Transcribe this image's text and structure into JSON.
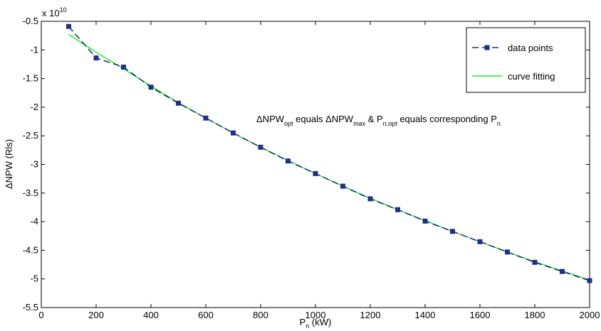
{
  "chart_data": {
    "type": "line",
    "xlabel_main": "P",
    "xlabel_sub": "n",
    "xlabel_unit": " (kW)",
    "ylabel": "ΔNPW (Rls)",
    "y_multiplier_prefix": "x 10",
    "y_multiplier_exp": "10",
    "xlim": [
      0,
      2000
    ],
    "ylim": [
      -5.5,
      -0.5
    ],
    "grid": false,
    "legend_position": "top-right",
    "xticks": [
      0,
      200,
      400,
      600,
      800,
      1000,
      1200,
      1400,
      1600,
      1800,
      2000
    ],
    "yticks": [
      -5.5,
      -5,
      -4.5,
      -4,
      -3.5,
      -3,
      -2.5,
      -2,
      -1.5,
      -1,
      -0.5
    ],
    "annotation": {
      "parts": [
        {
          "t": "ΔNPW",
          "sub": false
        },
        {
          "t": "opt",
          "sub": true
        },
        {
          "t": " equals ΔNPW",
          "sub": false
        },
        {
          "t": "max",
          "sub": true
        },
        {
          "t": " & P",
          "sub": false
        },
        {
          "t": "n,opt",
          "sub": true
        },
        {
          "t": " equals corresponding P",
          "sub": false
        },
        {
          "t": "n",
          "sub": true
        }
      ]
    },
    "series": [
      {
        "name": "data points",
        "style": "dashed-square",
        "color": "#1f2f8a",
        "x": [
          100,
          200,
          300,
          400,
          500,
          600,
          700,
          800,
          900,
          1000,
          1100,
          1200,
          1300,
          1400,
          1500,
          1600,
          1700,
          1800,
          1900,
          2000
        ],
        "y": [
          -0.59,
          -1.14,
          -1.3,
          -1.65,
          -1.93,
          -2.19,
          -2.45,
          -2.7,
          -2.94,
          -3.16,
          -3.38,
          -3.6,
          -3.79,
          -3.99,
          -4.17,
          -4.35,
          -4.53,
          -4.71,
          -4.87,
          -5.03
        ]
      },
      {
        "name": "curve fitting",
        "style": "solid",
        "color": "#00ee00",
        "x": [
          100,
          200,
          300,
          400,
          500,
          600,
          700,
          800,
          900,
          1000,
          1100,
          1200,
          1300,
          1400,
          1500,
          1600,
          1700,
          1800,
          1900,
          2000
        ],
        "y": [
          -0.73,
          -1.04,
          -1.33,
          -1.63,
          -1.92,
          -2.19,
          -2.45,
          -2.7,
          -2.93,
          -3.16,
          -3.38,
          -3.59,
          -3.79,
          -3.98,
          -4.17,
          -4.35,
          -4.53,
          -4.7,
          -4.86,
          -5.02
        ]
      }
    ]
  },
  "colors": {
    "data_points": "#1f2f8a",
    "curve_fitting": "#00ee00",
    "axes": "#000000"
  }
}
